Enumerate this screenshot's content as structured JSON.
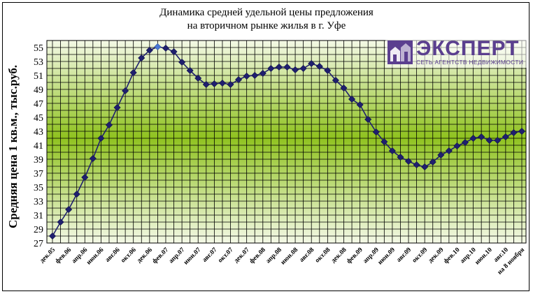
{
  "chart_data": {
    "type": "line",
    "title": "Динамика средней удельной цены предложения",
    "subtitle": "на вторичном рынке жилья в г. Уфе",
    "ylabel": "Средняя цена 1 кв.м., тыс.руб.",
    "xlabel": "",
    "ylim": [
      27,
      56
    ],
    "yticks": [
      27,
      29,
      31,
      33,
      35,
      37,
      39,
      41,
      43,
      45,
      47,
      49,
      51,
      53,
      55
    ],
    "grid": true,
    "legend": "none",
    "x_tick_labels": [
      "дек.05",
      "фев.06",
      "апр.06",
      "июн.06",
      "авг.06",
      "окт.06",
      "дек.06",
      "фев.07",
      "апр.07",
      "июн.07",
      "авг.07",
      "окт.07",
      "дек.07",
      "фев.08",
      "апр.08",
      "июн.08",
      "авг.08",
      "окт.08",
      "дек.08",
      "фев.09",
      "апр.09",
      "июн.09",
      "авг.09",
      "окт.09",
      "дек.09",
      "фев.10",
      "апр.10",
      "июн.10",
      "авг.10",
      "на 8 ноября"
    ],
    "series": [
      {
        "color": "#1f1f6e",
        "highlight_color": "#4a78d4",
        "values": [
          28.0,
          30.0,
          31.8,
          34.0,
          36.4,
          39.1,
          42.0,
          43.9,
          46.4,
          48.8,
          51.4,
          53.5,
          54.6,
          55.1,
          54.9,
          54.4,
          52.9,
          51.7,
          50.6,
          49.7,
          49.8,
          49.9,
          49.7,
          50.4,
          50.9,
          51.0,
          51.3,
          52.0,
          52.2,
          52.2,
          51.8,
          52.0,
          52.7,
          52.3,
          51.7,
          50.3,
          49.2,
          47.6,
          46.8,
          44.7,
          42.9,
          41.5,
          40.2,
          39.3,
          38.7,
          38.2,
          37.9,
          38.6,
          39.6,
          40.2,
          40.9,
          41.4,
          42.0,
          42.2,
          41.7,
          41.7,
          42.2,
          42.8,
          43.0
        ]
      }
    ]
  },
  "logo": {
    "word": "ЭКСПЕРТ",
    "sub": "СЕТЬ АГЕНТСТВ НЕДВИЖИМОСТИ",
    "color": "#5b3f8f"
  }
}
